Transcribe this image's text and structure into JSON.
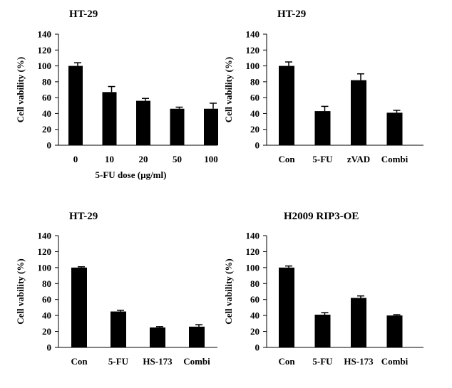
{
  "colors": {
    "bar": "#000000",
    "axis": "#000000",
    "background": "#ffffff"
  },
  "chart_data": [
    {
      "type": "bar",
      "title": "HT-29",
      "categories": [
        "0",
        "10",
        "20",
        "50",
        "100"
      ],
      "values": [
        100,
        67,
        56,
        46,
        46
      ],
      "errors": [
        4,
        7,
        3,
        2,
        7
      ],
      "xlabel": "5-FU dose (µg/ml)",
      "ylabel": "Cell vability (%)",
      "yticks": [
        "0",
        "20",
        "40",
        "60",
        "80",
        "100",
        "120",
        "140"
      ],
      "ylim": [
        0,
        140
      ],
      "grid": false
    },
    {
      "type": "bar",
      "title": "HT-29",
      "categories": [
        "Con",
        "5-FU",
        "zVAD",
        "Combi"
      ],
      "values": [
        100,
        43,
        82,
        41
      ],
      "errors": [
        5,
        6,
        8,
        3
      ],
      "xlabel": "",
      "ylabel": "Cell vability (%)",
      "yticks": [
        "0",
        "20",
        "40",
        "60",
        "80",
        "100",
        "120",
        "140"
      ],
      "ylim": [
        0,
        140
      ],
      "grid": false
    },
    {
      "type": "bar",
      "title": "HT-29",
      "categories": [
        "Con",
        "5-FU",
        "HS-173",
        "Combi"
      ],
      "values": [
        100,
        45,
        25,
        26
      ],
      "errors": [
        1,
        1.5,
        1,
        2.5
      ],
      "xlabel": "",
      "ylabel": "Cell vability (%)",
      "yticks": [
        "0",
        "20",
        "40",
        "60",
        "80",
        "100",
        "120",
        "140"
      ],
      "ylim": [
        0,
        140
      ],
      "grid": false
    },
    {
      "type": "bar",
      "title": "H2009 RIP3-OE",
      "categories": [
        "Con",
        "5-FU",
        "HS-173",
        "Combi"
      ],
      "values": [
        100,
        41,
        62,
        40
      ],
      "errors": [
        2,
        2.5,
        2.5,
        1
      ],
      "xlabel": "",
      "ylabel": "Cell vability (%)",
      "yticks": [
        "0",
        "20",
        "40",
        "60",
        "80",
        "100",
        "120",
        "140"
      ],
      "ylim": [
        0,
        140
      ],
      "grid": false
    }
  ]
}
